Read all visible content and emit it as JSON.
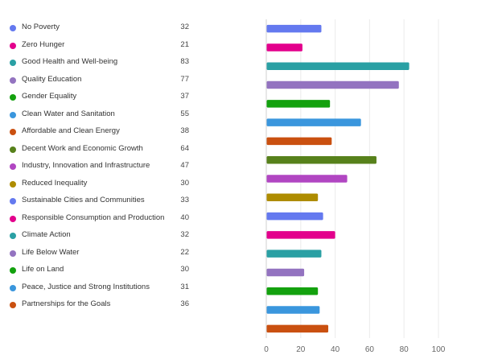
{
  "chart_data": {
    "type": "bar",
    "orientation": "horizontal",
    "title": "",
    "xlabel": "",
    "ylabel": "",
    "xlim": [
      0,
      100
    ],
    "xticks": [
      0,
      20,
      40,
      60,
      80,
      100
    ],
    "grid": true,
    "legend_position": "left",
    "categories": [
      "No Poverty",
      "Zero Hunger",
      "Good Health and Well-being",
      "Quality Education",
      "Gender Equality",
      "Clean Water and Sanitation",
      "Affordable and Clean Energy",
      "Decent Work and Economic Growth",
      "Industry, Innovation and Infrastructure",
      "Reduced Inequality",
      "Sustainable Cities and Communities",
      "Responsible Consumption and Production",
      "Climate Action",
      "Life Below Water",
      "Life on Land",
      "Peace, Justice and Strong Institutions",
      "Partnerships for the Goals"
    ],
    "values": [
      32,
      21,
      83,
      77,
      37,
      55,
      38,
      64,
      47,
      30,
      33,
      40,
      32,
      22,
      30,
      31,
      36
    ],
    "colors": [
      "#6479EF",
      "#E3008C",
      "#2AA0A4",
      "#9373C0",
      "#13A10E",
      "#3A96DD",
      "#CA5010",
      "#57811B",
      "#B146C2",
      "#AE8C00",
      "#6479EF",
      "#E3008C",
      "#2AA0A4",
      "#9373C0",
      "#13A10E",
      "#3A96DD",
      "#CA5010"
    ]
  }
}
